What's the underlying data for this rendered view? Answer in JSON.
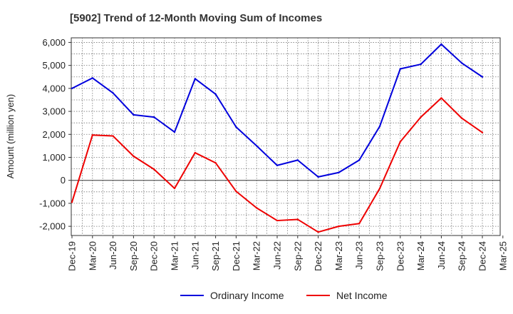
{
  "chart_data": {
    "type": "line",
    "title": "[5902]  Trend of 12-Month Moving Sum of Incomes",
    "xlabel": "",
    "ylabel": "Amount (million yen)",
    "ylim": [
      -2400,
      6200
    ],
    "yticks": [
      6000,
      5000,
      4000,
      3000,
      2000,
      1000,
      0,
      -1000,
      -2000
    ],
    "ytick_labels": [
      "6,000",
      "5,000",
      "4,000",
      "3,000",
      "2,000",
      "1,000",
      "0",
      "-1,000",
      "-2,000"
    ],
    "x": [
      "Dec-19",
      "Mar-20",
      "Jun-20",
      "Sep-20",
      "Dec-20",
      "Mar-21",
      "Jun-21",
      "Sep-21",
      "Dec-21",
      "Mar-22",
      "Jun-22",
      "Sep-22",
      "Dec-22",
      "Mar-23",
      "Jun-23",
      "Sep-23",
      "Dec-23",
      "Mar-24",
      "Jun-24",
      "Sep-24",
      "Dec-24",
      "Mar-25"
    ],
    "grid": true,
    "legend_position": "bottom",
    "series": [
      {
        "name": "Ordinary Income",
        "color": "#0000dd",
        "values": [
          4000,
          4450,
          3800,
          2850,
          2750,
          2100,
          4420,
          3750,
          2320,
          1500,
          650,
          880,
          150,
          340,
          880,
          2350,
          4850,
          5050,
          5920,
          5100,
          4500,
          null
        ]
      },
      {
        "name": "Net Income",
        "color": "#ee0000",
        "values": [
          -950,
          1970,
          1930,
          1050,
          480,
          -350,
          1200,
          760,
          -480,
          -1200,
          -1750,
          -1700,
          -2250,
          -2000,
          -1880,
          -350,
          1680,
          2750,
          3580,
          2700,
          2080,
          null
        ]
      }
    ]
  }
}
